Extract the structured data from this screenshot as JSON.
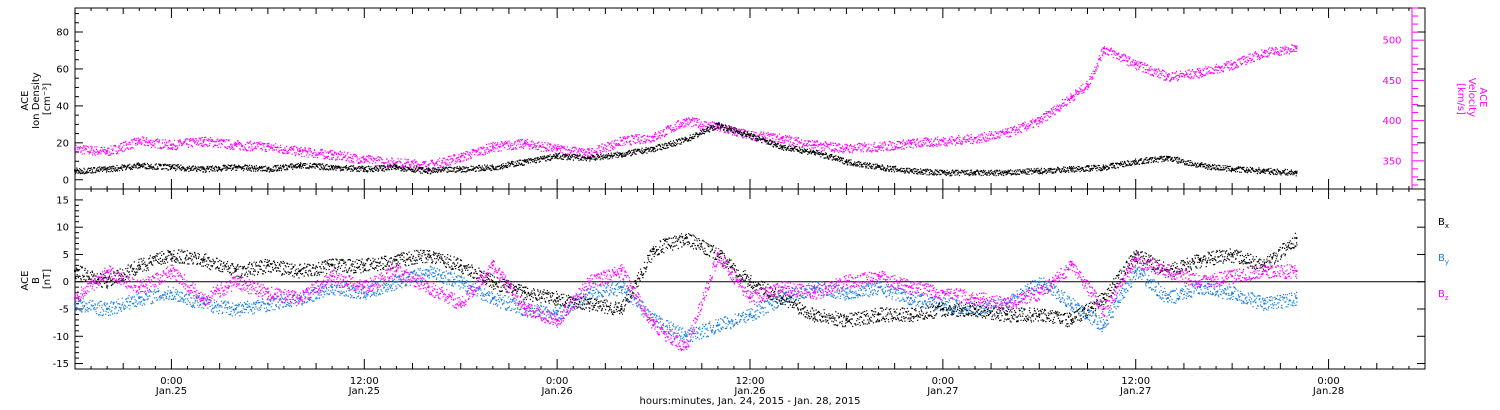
{
  "chart_data": [
    {
      "type": "scatter",
      "panel": "top",
      "ylabel_lines": [
        "ACE",
        "Ion Density",
        "[cm⁻³]"
      ],
      "y2label_lines": [
        "ACE",
        "Velocity",
        "[km/s]"
      ],
      "ylim": [
        -5,
        93
      ],
      "yticks": [
        0,
        20,
        40,
        60,
        80
      ],
      "y2lim": [
        315,
        540
      ],
      "y2ticks": [
        350,
        400,
        450,
        500
      ],
      "colors": {
        "density": "#000000",
        "velocity": "#ff00ff"
      },
      "series": [
        {
          "key": "density",
          "axis": "left",
          "x": [
            -6,
            -4,
            -2,
            0,
            2,
            4,
            6,
            8,
            10,
            12,
            14,
            16,
            18,
            20,
            22,
            24,
            26,
            28,
            30,
            32,
            34,
            36,
            38,
            40,
            42,
            44,
            46,
            48,
            50,
            52,
            54,
            56,
            58,
            60,
            62,
            64,
            66,
            68,
            70
          ],
          "values": [
            5,
            6,
            8,
            7,
            6,
            7,
            6,
            8,
            7,
            6,
            7,
            5,
            6,
            7,
            10,
            13,
            12,
            14,
            17,
            22,
            30,
            24,
            18,
            15,
            10,
            7,
            5,
            4,
            4,
            4,
            5,
            6,
            7,
            10,
            12,
            8,
            6,
            5,
            4
          ]
        },
        {
          "key": "velocity",
          "axis": "right",
          "x": [
            -6,
            -4,
            -2,
            0,
            2,
            4,
            6,
            8,
            10,
            12,
            14,
            16,
            18,
            20,
            22,
            24,
            26,
            28,
            30,
            32,
            34,
            36,
            38,
            40,
            42,
            44,
            46,
            48,
            50,
            52,
            54,
            56,
            57,
            58,
            60,
            62,
            64,
            66,
            68,
            70
          ],
          "values": [
            365,
            362,
            375,
            370,
            375,
            370,
            368,
            362,
            358,
            352,
            348,
            345,
            355,
            368,
            372,
            365,
            360,
            375,
            380,
            400,
            392,
            382,
            378,
            370,
            366,
            368,
            372,
            375,
            378,
            385,
            400,
            430,
            445,
            490,
            470,
            455,
            460,
            470,
            485,
            490
          ]
        }
      ]
    },
    {
      "type": "scatter",
      "panel": "bottom",
      "ylabel_lines": [
        "ACE",
        "B",
        "[nT]"
      ],
      "ylim": [
        -16,
        17
      ],
      "yticks": [
        -15,
        -10,
        -5,
        0,
        5,
        10,
        15
      ],
      "legend": [
        {
          "key": "bx",
          "base": "B",
          "sub": "x",
          "color": "#000000"
        },
        {
          "key": "by",
          "base": "B",
          "sub": "y",
          "color": "#1a80e0"
        },
        {
          "key": "bz",
          "base": "B",
          "sub": "z",
          "color": "#ff00ff"
        }
      ],
      "series": [
        {
          "key": "bx",
          "x": [
            -6,
            -4,
            -2,
            0,
            2,
            4,
            6,
            8,
            10,
            12,
            14,
            16,
            18,
            20,
            22,
            24,
            26,
            28,
            30,
            32,
            34,
            36,
            38,
            40,
            42,
            44,
            46,
            48,
            50,
            52,
            54,
            56,
            58,
            60,
            62,
            64,
            66,
            68,
            70
          ],
          "values": [
            2,
            0,
            3,
            5,
            4,
            2,
            3,
            2,
            3,
            3,
            4,
            5,
            3,
            0,
            -2,
            -3,
            -4,
            -5,
            6,
            8,
            5,
            0,
            -3,
            -6,
            -7,
            -6,
            -6,
            -5,
            -5,
            -6,
            -6,
            -7,
            -3,
            5,
            2,
            4,
            5,
            3,
            8
          ]
        },
        {
          "key": "by",
          "x": [
            -6,
            -4,
            -2,
            0,
            2,
            4,
            6,
            8,
            10,
            12,
            14,
            16,
            18,
            20,
            22,
            24,
            26,
            28,
            30,
            32,
            34,
            36,
            38,
            40,
            42,
            44,
            46,
            48,
            50,
            52,
            54,
            56,
            58,
            60,
            62,
            64,
            66,
            68,
            70
          ],
          "values": [
            -4,
            -5,
            -3,
            -2,
            -4,
            -5,
            -4,
            -3,
            -1,
            -2,
            0,
            2,
            0,
            -3,
            -5,
            -6,
            -2,
            -1,
            -7,
            -10,
            -8,
            -6,
            -3,
            -1,
            -2,
            -1,
            -3,
            -4,
            -5,
            -4,
            0,
            -4,
            -8,
            2,
            -3,
            -1,
            -2,
            -4,
            -3
          ]
        },
        {
          "key": "bz",
          "x": [
            -6,
            -4,
            -2,
            0,
            2,
            4,
            6,
            8,
            10,
            12,
            14,
            16,
            18,
            20,
            22,
            24,
            26,
            28,
            30,
            32,
            34,
            36,
            38,
            40,
            42,
            44,
            46,
            48,
            50,
            52,
            54,
            56,
            58,
            60,
            62,
            64,
            66,
            68,
            70
          ],
          "values": [
            -3,
            2,
            -1,
            2,
            -3,
            0,
            -2,
            -3,
            1,
            -1,
            2,
            -1,
            -4,
            3,
            -5,
            -7,
            0,
            2,
            -8,
            -12,
            5,
            -3,
            -1,
            -2,
            0,
            1,
            -1,
            -2,
            -3,
            -4,
            -2,
            3,
            -5,
            4,
            2,
            0,
            1,
            2,
            2
          ]
        }
      ]
    }
  ],
  "x_axis": {
    "range": [
      -6,
      78
    ],
    "ticks": [
      {
        "h": 0,
        "time": "0:00",
        "date": "Jan.25"
      },
      {
        "h": 12,
        "time": "12:00",
        "date": "Jan.25"
      },
      {
        "h": 24,
        "time": "0:00",
        "date": "Jan.26"
      },
      {
        "h": 36,
        "time": "12:00",
        "date": "Jan.26"
      },
      {
        "h": 48,
        "time": "0:00",
        "date": "Jan.27"
      },
      {
        "h": 60,
        "time": "12:00",
        "date": "Jan.27"
      },
      {
        "h": 72,
        "time": "0:00",
        "date": "Jan.28"
      }
    ],
    "label": "hours:minutes, Jan. 24, 2015 - Jan. 28, 2015"
  }
}
